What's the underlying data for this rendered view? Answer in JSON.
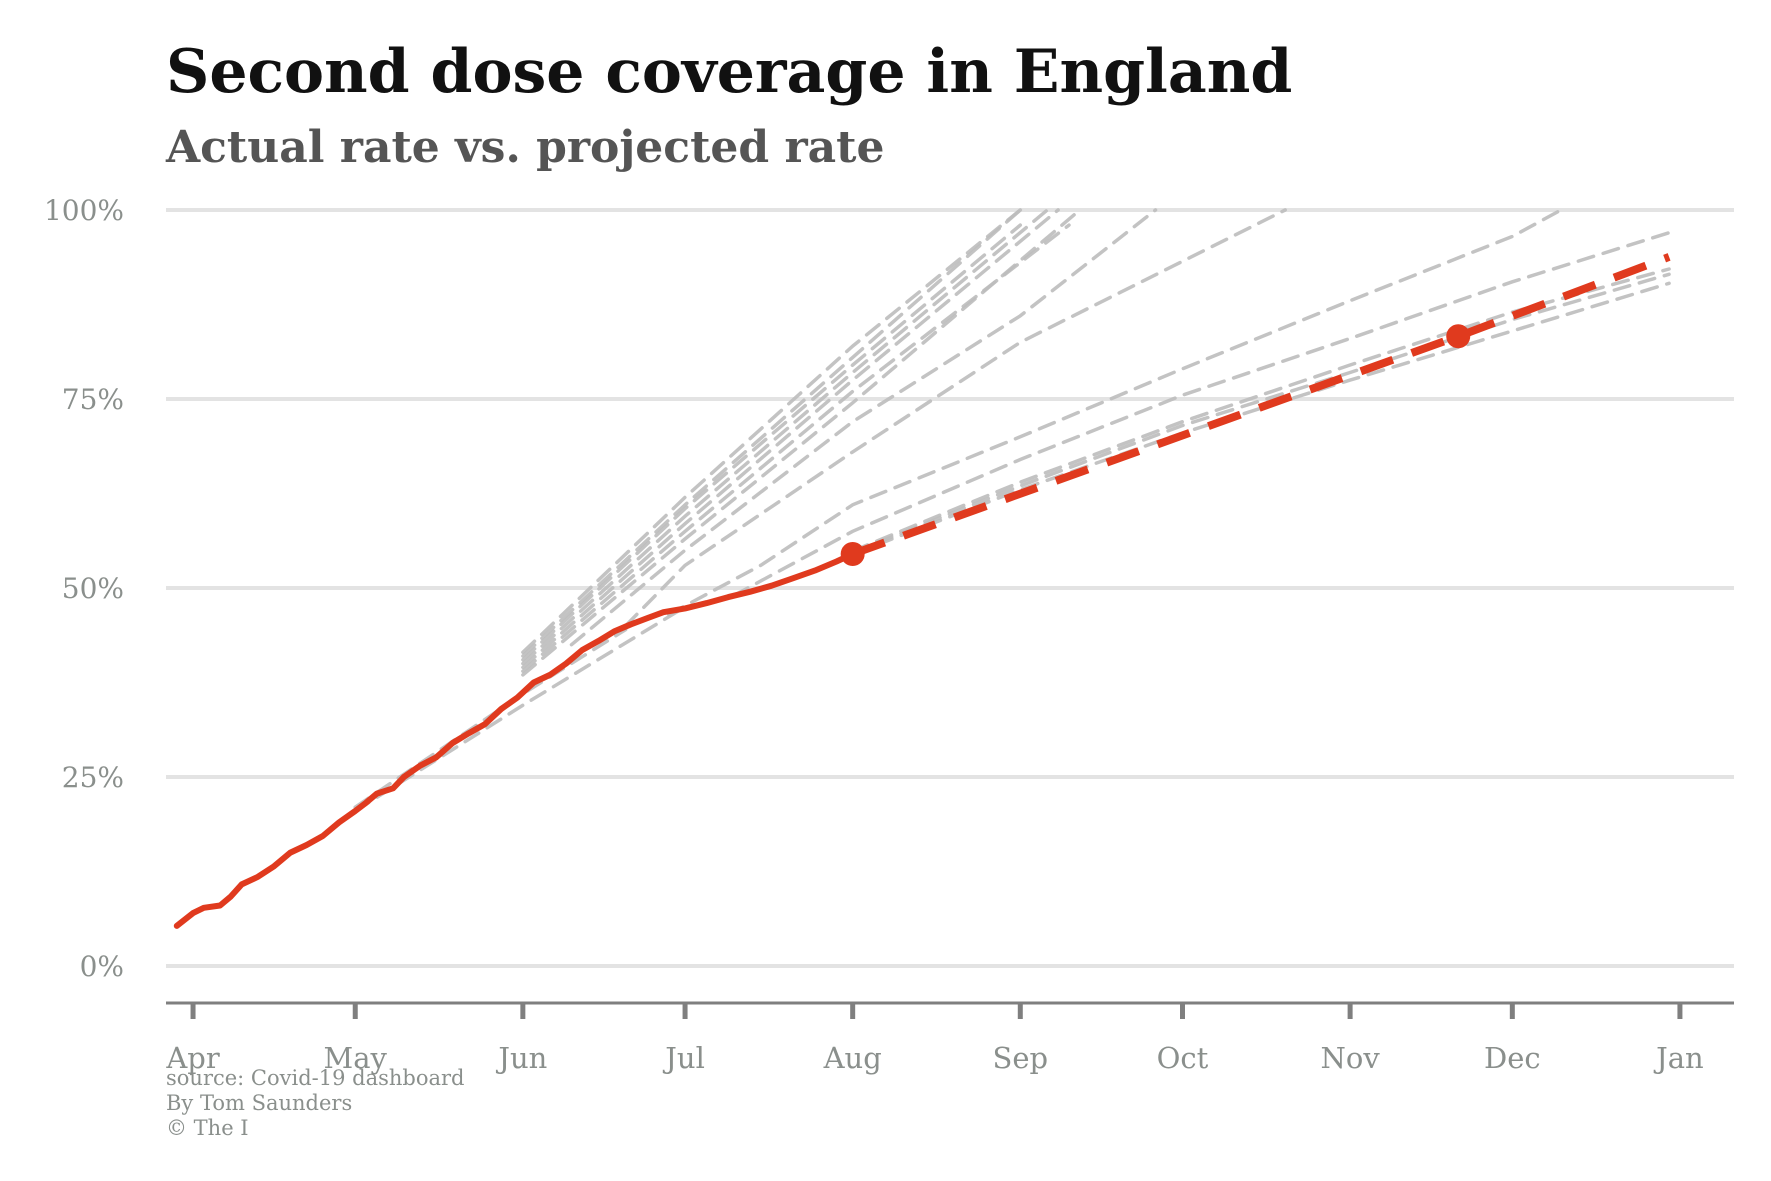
{
  "title": "Second dose coverage in England",
  "subtitle": "Actual rate vs. projected rate",
  "credits": {
    "source": "source: Covid-19 dashboard",
    "author": "By Tom Saunders",
    "copyright": "© The I"
  },
  "colors": {
    "actual": "#e03a1e",
    "projection": "#bdbdbd",
    "grid": "#e3e3e3",
    "axis": "#7f7f7f",
    "tick_label": "#8a8f8c"
  },
  "chart_data": {
    "type": "line",
    "title": "Second dose coverage in England",
    "subtitle": "Actual rate vs. projected rate",
    "xlabel": "",
    "ylabel": "",
    "x_axis": {
      "type": "date",
      "range": [
        "2021-03-27",
        "2022-01-11"
      ],
      "ticks": [
        {
          "date": "2021-04-01",
          "label": "Apr"
        },
        {
          "date": "2021-05-01",
          "label": "May"
        },
        {
          "date": "2021-06-01",
          "label": "Jun"
        },
        {
          "date": "2021-07-01",
          "label": "Jul"
        },
        {
          "date": "2021-08-01",
          "label": "Aug"
        },
        {
          "date": "2021-09-01",
          "label": "Sep"
        },
        {
          "date": "2021-10-01",
          "label": "Oct"
        },
        {
          "date": "2021-11-01",
          "label": "Nov"
        },
        {
          "date": "2021-12-01",
          "label": "Dec"
        },
        {
          "date": "2022-01-01",
          "label": "Jan"
        }
      ]
    },
    "y_axis": {
      "range": [
        0,
        100
      ],
      "ticks": [
        {
          "value": 0,
          "label": "0%"
        },
        {
          "value": 25,
          "label": "25%"
        },
        {
          "value": 50,
          "label": "50%"
        },
        {
          "value": 75,
          "label": "75%"
        },
        {
          "value": 100,
          "label": "100%"
        }
      ]
    },
    "grid": true,
    "legend": "none",
    "actual": {
      "points": [
        [
          "2021-03-29",
          5.3
        ],
        [
          "2021-04-01",
          7.0
        ],
        [
          "2021-04-03",
          7.7
        ],
        [
          "2021-04-06",
          8.0
        ],
        [
          "2021-04-08",
          9.2
        ],
        [
          "2021-04-10",
          10.8
        ],
        [
          "2021-04-13",
          11.8
        ],
        [
          "2021-04-16",
          13.2
        ],
        [
          "2021-04-19",
          15.0
        ],
        [
          "2021-04-22",
          16.0
        ],
        [
          "2021-04-25",
          17.2
        ],
        [
          "2021-04-28",
          19.0
        ],
        [
          "2021-05-01",
          20.5
        ],
        [
          "2021-05-03",
          21.6
        ],
        [
          "2021-05-05",
          22.8
        ],
        [
          "2021-05-08",
          23.5
        ],
        [
          "2021-05-10",
          25.0
        ],
        [
          "2021-05-13",
          26.5
        ],
        [
          "2021-05-16",
          27.6
        ],
        [
          "2021-05-19",
          29.5
        ],
        [
          "2021-05-22",
          30.8
        ],
        [
          "2021-05-25",
          32.0
        ],
        [
          "2021-05-28",
          34.0
        ],
        [
          "2021-05-31",
          35.5
        ],
        [
          "2021-06-03",
          37.5
        ],
        [
          "2021-06-06",
          38.5
        ],
        [
          "2021-06-09",
          40.0
        ],
        [
          "2021-06-12",
          41.8
        ],
        [
          "2021-06-15",
          43.0
        ],
        [
          "2021-06-18",
          44.3
        ],
        [
          "2021-06-21",
          45.2
        ],
        [
          "2021-06-24",
          46.0
        ],
        [
          "2021-06-27",
          46.8
        ],
        [
          "2021-07-01",
          47.3
        ],
        [
          "2021-07-05",
          48.0
        ],
        [
          "2021-07-09",
          48.8
        ],
        [
          "2021-07-13",
          49.5
        ],
        [
          "2021-07-17",
          50.3
        ],
        [
          "2021-07-21",
          51.3
        ],
        [
          "2021-07-25",
          52.3
        ],
        [
          "2021-07-29",
          53.5
        ],
        [
          "2021-08-01",
          54.5
        ]
      ],
      "last_point": [
        "2021-08-01",
        54.5
      ]
    },
    "actual_projection": {
      "points": [
        [
          "2021-08-01",
          54.5
        ],
        [
          "2021-11-21",
          83.3
        ],
        [
          "2021-12-30",
          93.8
        ]
      ],
      "marked_point": [
        "2021-11-21",
        83.3
      ]
    },
    "projections": [
      {
        "points": [
          [
            "2021-06-01",
            41.5
          ],
          [
            "2021-07-01",
            62.0
          ],
          [
            "2021-08-01",
            82.0
          ],
          [
            "2021-09-01",
            100.0
          ]
        ]
      },
      {
        "points": [
          [
            "2021-06-01",
            41.0
          ],
          [
            "2021-07-01",
            61.0
          ],
          [
            "2021-08-01",
            80.5
          ],
          [
            "2021-09-01",
            100.0
          ]
        ]
      },
      {
        "points": [
          [
            "2021-06-01",
            40.5
          ],
          [
            "2021-07-01",
            60.5
          ],
          [
            "2021-08-01",
            79.5
          ],
          [
            "2021-09-01",
            98.0
          ]
        ]
      },
      {
        "points": [
          [
            "2021-06-01",
            40.0
          ],
          [
            "2021-07-01",
            59.5
          ],
          [
            "2021-08-01",
            78.5
          ],
          [
            "2021-09-06",
            100.0
          ]
        ]
      },
      {
        "points": [
          [
            "2021-06-01",
            39.5
          ],
          [
            "2021-07-01",
            58.5
          ],
          [
            "2021-08-01",
            77.5
          ],
          [
            "2021-09-08",
            100.0
          ]
        ]
      },
      {
        "points": [
          [
            "2021-06-01",
            39.0
          ],
          [
            "2021-07-01",
            57.5
          ],
          [
            "2021-08-01",
            76.0
          ],
          [
            "2021-09-10",
            98.0
          ]
        ]
      },
      {
        "points": [
          [
            "2021-06-01",
            38.5
          ],
          [
            "2021-07-01",
            56.5
          ],
          [
            "2021-08-01",
            74.5
          ],
          [
            "2021-09-12",
            100.0
          ]
        ]
      },
      {
        "points": [
          [
            "2021-06-10",
            42.5
          ],
          [
            "2021-07-01",
            55.0
          ],
          [
            "2021-08-01",
            72.0
          ],
          [
            "2021-09-01",
            86.0
          ],
          [
            "2021-09-26",
            100.0
          ]
        ]
      },
      {
        "points": [
          [
            "2021-06-20",
            45.0
          ],
          [
            "2021-07-01",
            53.0
          ],
          [
            "2021-08-01",
            68.0
          ],
          [
            "2021-09-01",
            82.5
          ],
          [
            "2021-10-20",
            100.0
          ]
        ]
      },
      {
        "points": [
          [
            "2021-06-28",
            46.5
          ],
          [
            "2021-07-15",
            53.0
          ],
          [
            "2021-08-01",
            61.0
          ],
          [
            "2021-09-01",
            70.0
          ],
          [
            "2021-10-01",
            79.0
          ],
          [
            "2021-11-01",
            88.0
          ],
          [
            "2021-12-01",
            96.5
          ],
          [
            "2021-12-10",
            100.0
          ]
        ]
      },
      {
        "points": [
          [
            "2021-07-10",
            49.0
          ],
          [
            "2021-08-01",
            57.5
          ],
          [
            "2021-09-01",
            67.0
          ],
          [
            "2021-10-01",
            75.5
          ],
          [
            "2021-11-01",
            83.0
          ],
          [
            "2021-12-01",
            90.5
          ],
          [
            "2021-12-30",
            97.0
          ]
        ]
      },
      {
        "points": [
          [
            "2021-08-01",
            54.5
          ],
          [
            "2021-09-01",
            63.0
          ],
          [
            "2021-10-01",
            70.5
          ],
          [
            "2021-11-01",
            77.5
          ],
          [
            "2021-12-01",
            84.0
          ],
          [
            "2021-12-30",
            90.3
          ]
        ]
      },
      {
        "points": [
          [
            "2021-08-01",
            54.7
          ],
          [
            "2021-09-01",
            63.5
          ],
          [
            "2021-10-01",
            71.5
          ],
          [
            "2021-11-01",
            78.5
          ],
          [
            "2021-12-01",
            85.5
          ],
          [
            "2021-12-30",
            91.5
          ]
        ]
      },
      {
        "points": [
          [
            "2021-08-01",
            54.9
          ],
          [
            "2021-09-01",
            64.0
          ],
          [
            "2021-10-01",
            72.0
          ],
          [
            "2021-11-01",
            79.5
          ],
          [
            "2021-12-01",
            86.5
          ],
          [
            "2021-12-30",
            92.2
          ]
        ]
      },
      {
        "points": [
          [
            "2021-05-01",
            20.5
          ],
          [
            "2021-06-01",
            34.5
          ],
          [
            "2021-07-01",
            47.5
          ]
        ]
      },
      {
        "points": [
          [
            "2021-05-01",
            21.0
          ],
          [
            "2021-06-01",
            36.0
          ],
          [
            "2021-06-20",
            44.5
          ]
        ]
      }
    ]
  }
}
